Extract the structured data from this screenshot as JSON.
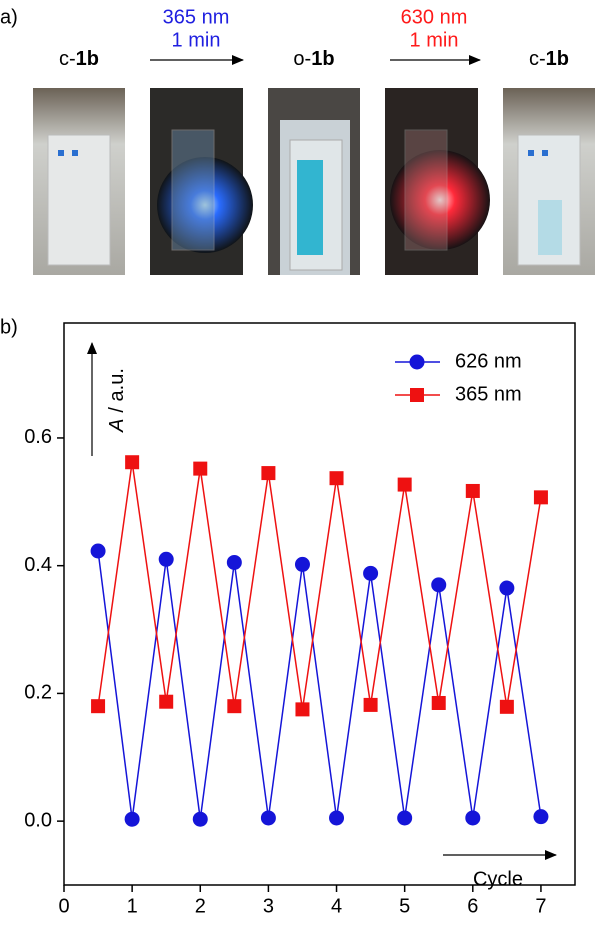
{
  "panel_a": {
    "label": "a)",
    "states": [
      {
        "prefix": "c-",
        "bold": "1b"
      },
      {
        "prefix": "o-",
        "bold": "1b"
      },
      {
        "prefix": "c-",
        "bold": "1b"
      }
    ],
    "steps": [
      {
        "wavelength": "365 nm",
        "time": "1 min",
        "color": "#1f1fe0"
      },
      {
        "wavelength": "630 nm",
        "time": "1 min",
        "color": "#ff1a1a"
      }
    ]
  },
  "panel_b_label": "b)",
  "chart_data": {
    "type": "line",
    "xlabel": "Cycle",
    "ylabel_symbol": "A",
    "ylabel_rest": "/ a.u.",
    "x": [
      0.5,
      1,
      1.5,
      2,
      2.5,
      3,
      3.5,
      4,
      4.5,
      5,
      5.5,
      6,
      6.5,
      7
    ],
    "series": [
      {
        "name": "626 nm",
        "color": "#1515d8",
        "marker": "circle",
        "values": [
          0.423,
          0.003,
          0.41,
          0.003,
          0.405,
          0.005,
          0.402,
          0.005,
          0.388,
          0.005,
          0.37,
          0.005,
          0.365,
          0.007
        ]
      },
      {
        "name": "365 nm",
        "color": "#ee1111",
        "marker": "square",
        "values": [
          0.18,
          0.562,
          0.187,
          0.552,
          0.18,
          0.545,
          0.175,
          0.537,
          0.182,
          0.527,
          0.185,
          0.517,
          0.179,
          0.507
        ]
      }
    ],
    "xlim": [
      0,
      7.5
    ],
    "ylim": [
      -0.1,
      0.78
    ],
    "xticks": [
      0,
      1,
      2,
      3,
      4,
      5,
      6,
      7
    ],
    "yticks": [
      {
        "value": 0,
        "label": "0.0"
      },
      {
        "value": 0.2,
        "label": "0.2"
      },
      {
        "value": 0.4,
        "label": "0.4"
      },
      {
        "value": 0.6,
        "label": "0.6"
      }
    ],
    "legend": "upper right",
    "grid": false
  }
}
